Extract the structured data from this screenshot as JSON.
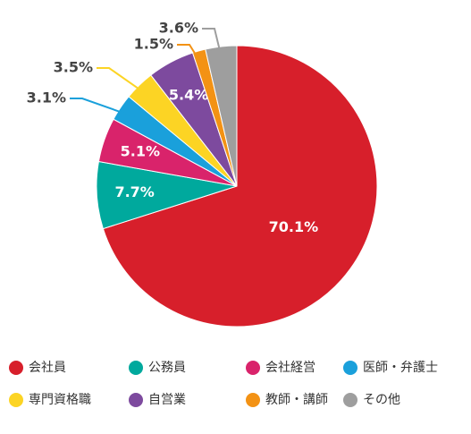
{
  "chart_data": {
    "type": "pie",
    "categories": [
      "会社員",
      "公務員",
      "会社経営",
      "医師・弁護士",
      "専門資格職",
      "自営業",
      "教師・講師",
      "その他"
    ],
    "values": [
      70.1,
      7.7,
      5.1,
      3.1,
      3.5,
      5.4,
      1.5,
      3.6
    ],
    "value_labels": [
      "70.1%",
      "7.7%",
      "5.1%",
      "3.1%",
      "3.5%",
      "5.4%",
      "1.5%",
      "3.6%"
    ],
    "colors": [
      "#d71f2b",
      "#00a99d",
      "#d9236b",
      "#1aa0db",
      "#fcd424",
      "#7d4a9e",
      "#f39214",
      "#9e9e9e"
    ]
  }
}
